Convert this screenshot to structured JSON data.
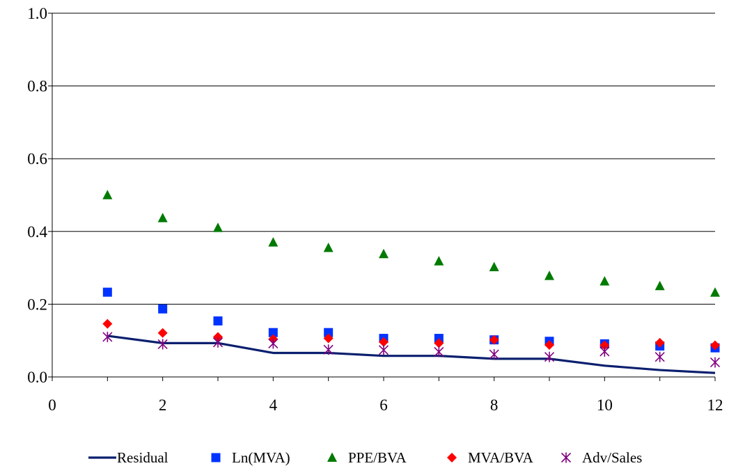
{
  "chart_data": {
    "type": "scatter",
    "xlim": [
      0,
      12
    ],
    "ylim": [
      0,
      1
    ],
    "x_ticks": [
      "0",
      "2",
      "4",
      "6",
      "8",
      "10",
      "12"
    ],
    "y_ticks": [
      "0.0",
      "0.2",
      "0.4",
      "0.6",
      "0.8",
      "1.0"
    ],
    "grid": "horizontal",
    "legend_position": "bottom",
    "x": [
      1,
      2,
      3,
      4,
      5,
      6,
      7,
      8,
      9,
      10,
      11,
      12
    ],
    "series": [
      {
        "name": "Residual",
        "style": "line",
        "color": "#0a1f6e",
        "values": [
          0.113,
          0.093,
          0.093,
          0.066,
          0.066,
          0.058,
          0.058,
          0.05,
          0.05,
          0.031,
          0.019,
          0.011
        ]
      },
      {
        "name": "Ln(MVA)",
        "style": "square",
        "color": "#0033ff",
        "values": [
          0.233,
          0.187,
          0.154,
          0.122,
          0.122,
          0.106,
          0.106,
          0.102,
          0.098,
          0.091,
          0.085,
          0.08
        ]
      },
      {
        "name": "PPE/BVA",
        "style": "triangle",
        "color": "#007a00",
        "values": [
          0.5,
          0.437,
          0.41,
          0.37,
          0.355,
          0.338,
          0.318,
          0.302,
          0.278,
          0.263,
          0.25,
          0.232
        ]
      },
      {
        "name": "MVA/BVA",
        "style": "diamond",
        "color": "#ff0000",
        "values": [
          0.146,
          0.121,
          0.11,
          0.104,
          0.106,
          0.096,
          0.093,
          0.102,
          0.088,
          0.087,
          0.094,
          0.087
        ]
      },
      {
        "name": "Adv/Sales",
        "style": "star",
        "color": "#800080",
        "values": [
          0.11,
          0.09,
          0.095,
          0.092,
          0.075,
          0.074,
          0.069,
          0.062,
          0.055,
          0.07,
          0.055,
          0.04
        ]
      }
    ]
  }
}
